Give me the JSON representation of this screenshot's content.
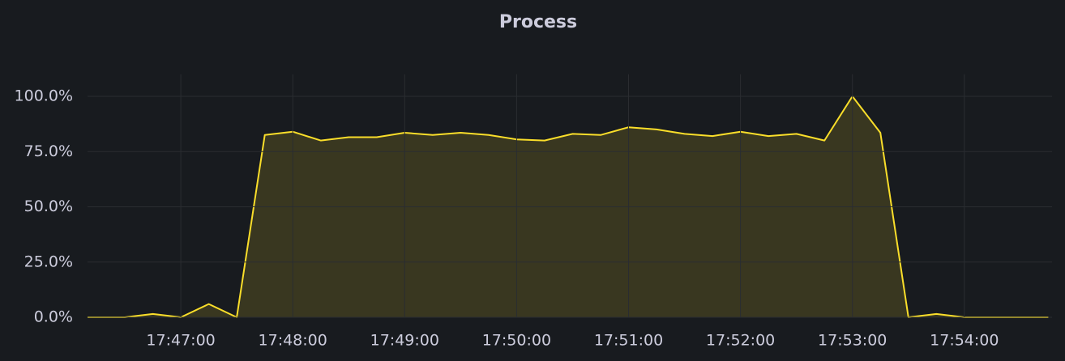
{
  "chart_data": {
    "type": "area",
    "title": "Process",
    "x": [
      "17:46:00",
      "17:46:15",
      "17:46:30",
      "17:46:45",
      "17:47:00",
      "17:47:15",
      "17:47:30",
      "17:47:45",
      "17:48:00",
      "17:48:15",
      "17:48:30",
      "17:48:45",
      "17:49:00",
      "17:49:15",
      "17:49:30",
      "17:49:45",
      "17:50:00",
      "17:50:15",
      "17:50:30",
      "17:50:45",
      "17:51:00",
      "17:51:15",
      "17:51:30",
      "17:51:45",
      "17:52:00",
      "17:52:15",
      "17:52:30",
      "17:52:45",
      "17:53:00",
      "17:53:15",
      "17:53:30",
      "17:53:45",
      "17:54:00",
      "17:54:15",
      "17:54:30",
      "17:54:45"
    ],
    "values": [
      0,
      0,
      0,
      1.5,
      0,
      6,
      0,
      82.5,
      84,
      80,
      81.5,
      81.5,
      83.5,
      82.5,
      83.5,
      82.5,
      80.5,
      80,
      83,
      82.5,
      86,
      85,
      83,
      82,
      84,
      82,
      83,
      80,
      100,
      83.5,
      0,
      1.5,
      0,
      0,
      0,
      0
    ],
    "color": "#fade2a",
    "xlim": [
      "17:46:10",
      "17:54:47"
    ],
    "xticks": [
      "17:47:00",
      "17:48:00",
      "17:49:00",
      "17:50:00",
      "17:51:00",
      "17:52:00",
      "17:53:00",
      "17:54:00"
    ],
    "ylim": [
      0,
      110
    ],
    "yticks": [
      {
        "value": 0,
        "label": "0.0%"
      },
      {
        "value": 25,
        "label": "25.0%"
      },
      {
        "value": 50,
        "label": "50.0%"
      },
      {
        "value": 75,
        "label": "75.0%"
      },
      {
        "value": 100,
        "label": "100.0%"
      }
    ],
    "grid": true
  }
}
